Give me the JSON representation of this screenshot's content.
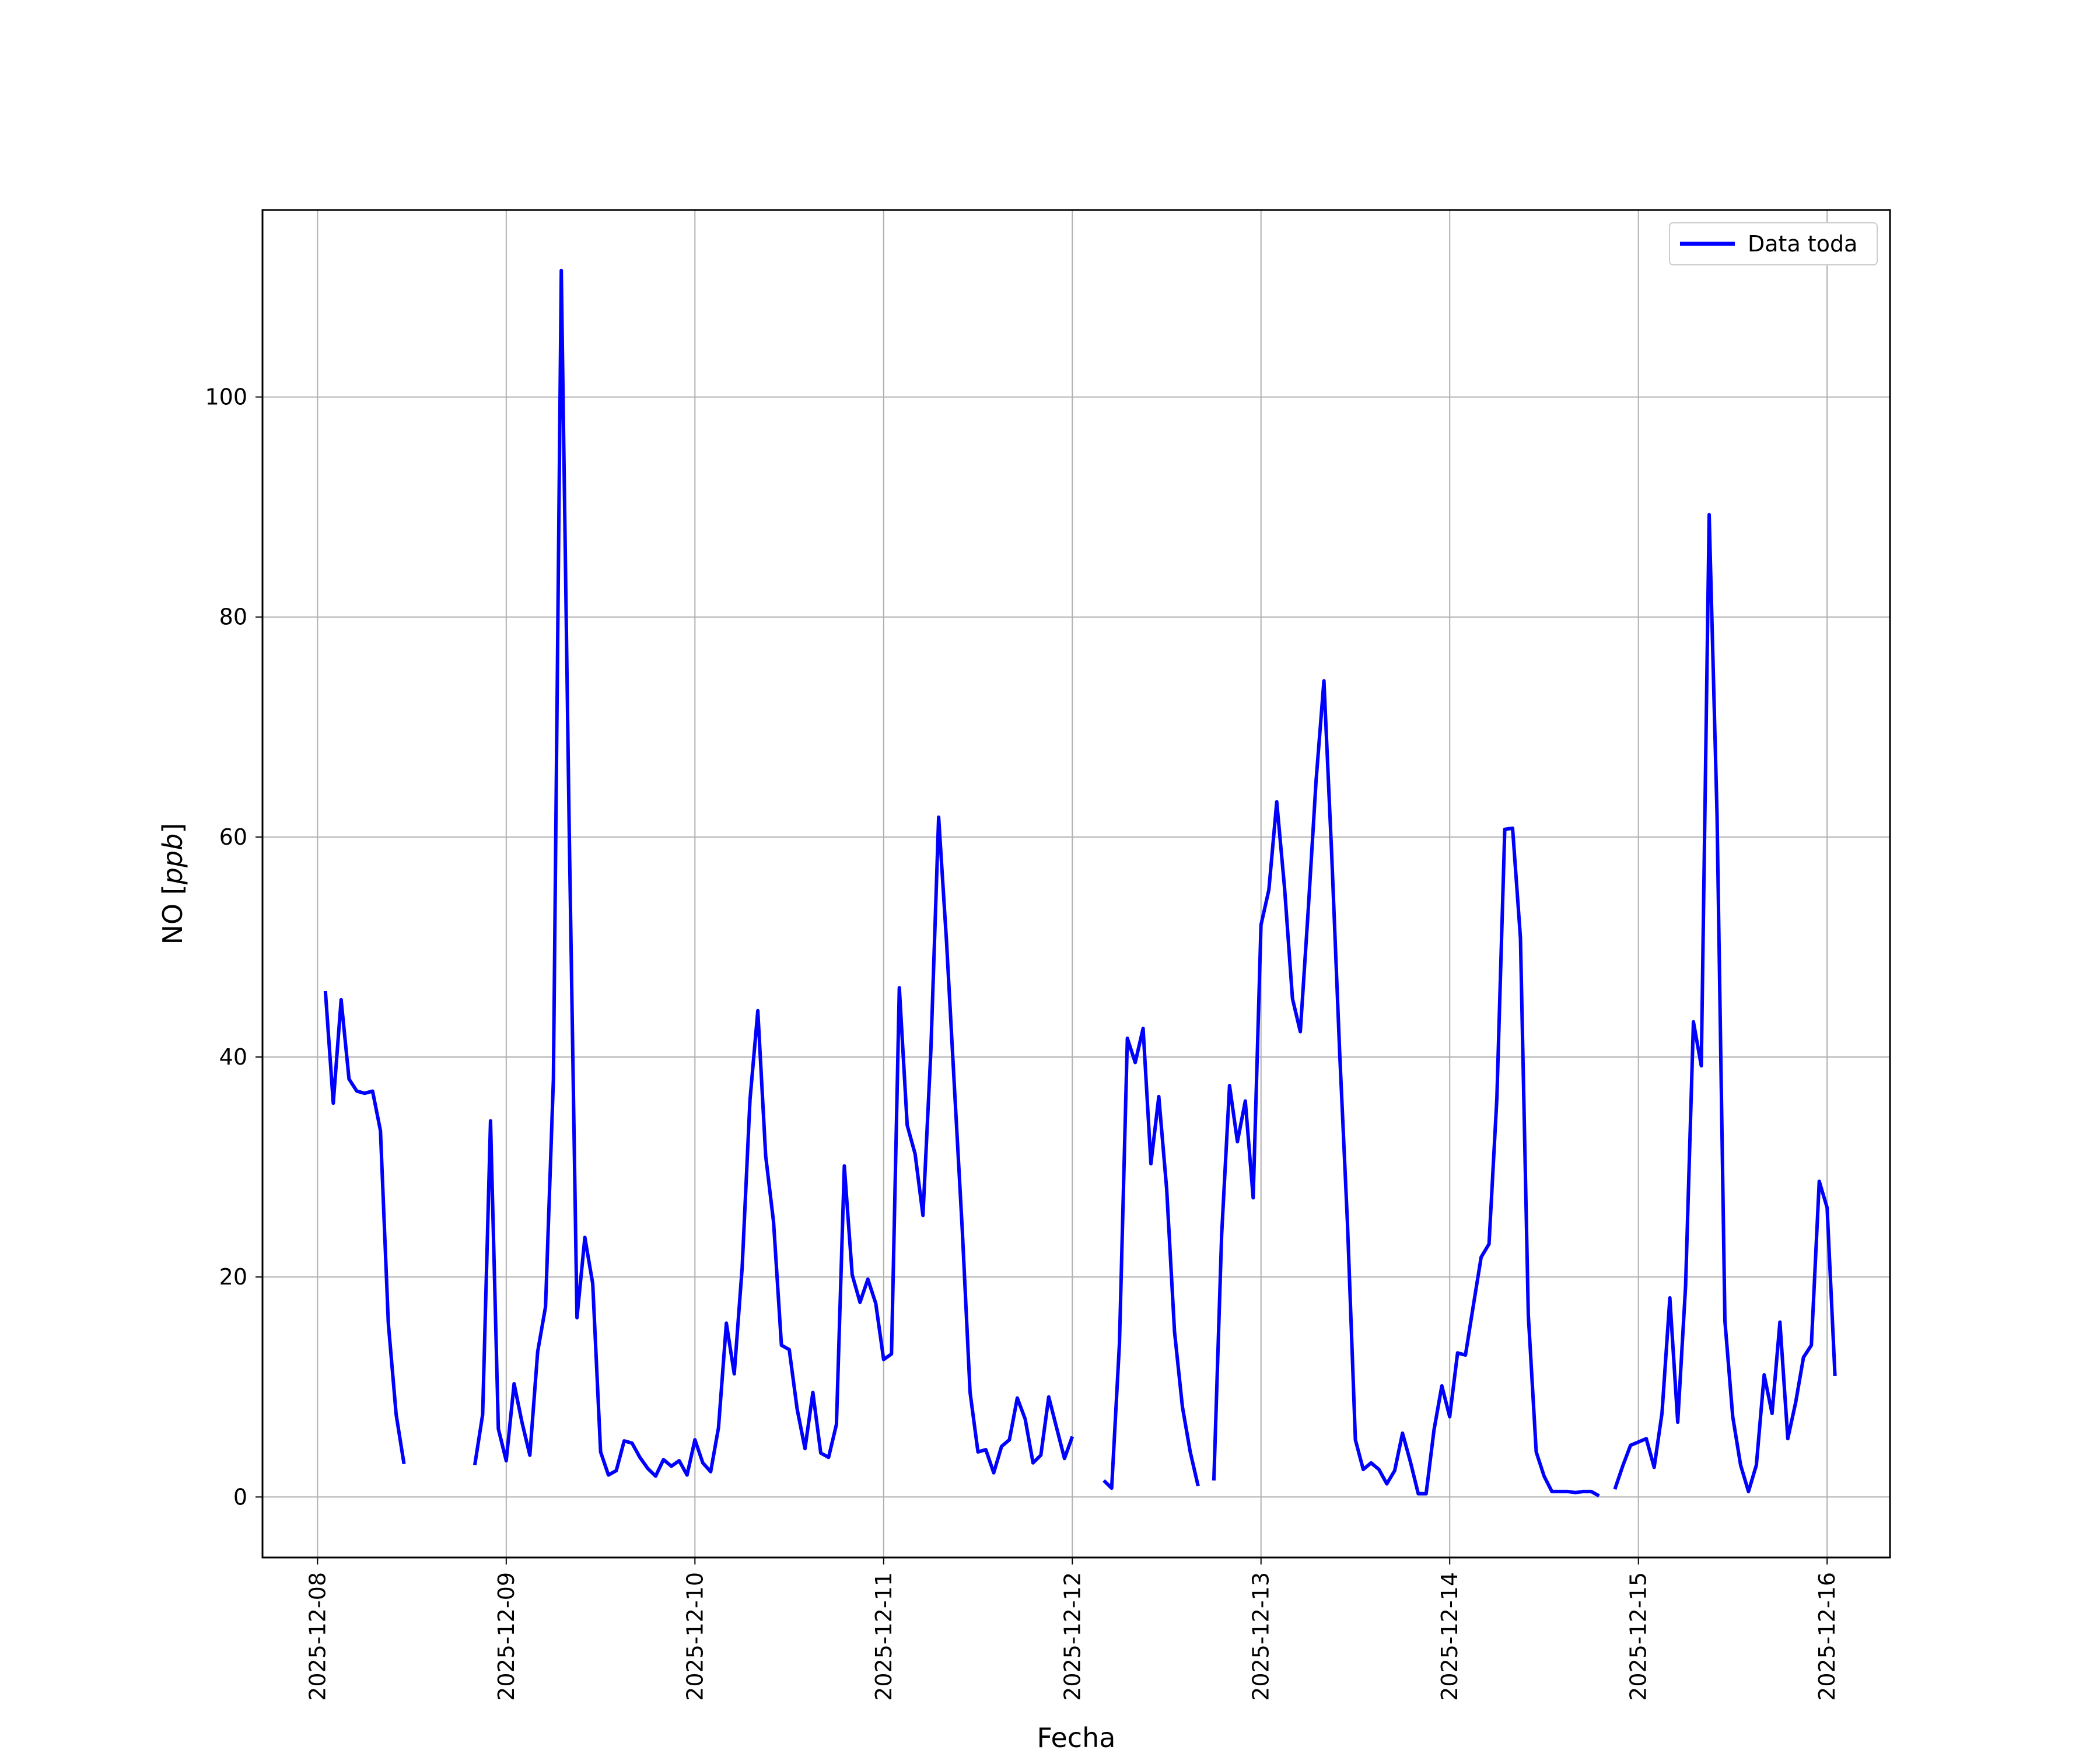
{
  "chart_data": {
    "type": "line",
    "title": "",
    "xlabel": "Fecha",
    "ylabel": "NO [ppb]",
    "ylabel_parts": {
      "base": "NO [",
      "unit": "ppb",
      "close": "]"
    },
    "xlim": [
      "2025-12-07 17:00",
      "2025-12-16 08:00"
    ],
    "ylim": [
      -5.5,
      117
    ],
    "grid": true,
    "legend_position": "top-right",
    "x_ticks": [
      "2025-12-08",
      "2025-12-09",
      "2025-12-10",
      "2025-12-11",
      "2025-12-12",
      "2025-12-13",
      "2025-12-14",
      "2025-12-15",
      "2025-12-16"
    ],
    "y_ticks": [
      0,
      20,
      40,
      60,
      80,
      100
    ],
    "series": [
      {
        "name": "Data toda",
        "color": "#0000ff",
        "points": [
          [
            "2025-12-08 01:00",
            46.0
          ],
          [
            "2025-12-08 02:00",
            35.8
          ],
          [
            "2025-12-08 03:00",
            45.2
          ],
          [
            "2025-12-08 04:00",
            38.0
          ],
          [
            "2025-12-08 05:00",
            36.9
          ],
          [
            "2025-12-08 06:00",
            36.7
          ],
          [
            "2025-12-08 07:00",
            36.9
          ],
          [
            "2025-12-08 08:00",
            33.3
          ],
          [
            "2025-12-08 09:00",
            15.8
          ],
          [
            "2025-12-08 10:00",
            7.5
          ],
          [
            "2025-12-08 11:00",
            3.0
          ],
          [
            "2025-12-08 12:00",
            null
          ],
          [
            "2025-12-08 13:00",
            null
          ],
          [
            "2025-12-08 14:00",
            null
          ],
          [
            "2025-12-08 15:00",
            null
          ],
          [
            "2025-12-08 16:00",
            null
          ],
          [
            "2025-12-08 17:00",
            null
          ],
          [
            "2025-12-08 18:00",
            null
          ],
          [
            "2025-12-08 19:00",
            null
          ],
          [
            "2025-12-08 20:00",
            2.9
          ],
          [
            "2025-12-08 21:00",
            7.5
          ],
          [
            "2025-12-08 22:00",
            34.2
          ],
          [
            "2025-12-08 23:00",
            6.2
          ],
          [
            "2025-12-09 00:00",
            3.3
          ],
          [
            "2025-12-09 01:00",
            10.3
          ],
          [
            "2025-12-09 02:00",
            6.8
          ],
          [
            "2025-12-09 03:00",
            3.8
          ],
          [
            "2025-12-09 04:00",
            13.2
          ],
          [
            "2025-12-09 05:00",
            17.3
          ],
          [
            "2025-12-09 06:00",
            38.0
          ],
          [
            "2025-12-09 07:00",
            111.5
          ],
          [
            "2025-12-09 08:00",
            61.0
          ],
          [
            "2025-12-09 09:00",
            16.3
          ],
          [
            "2025-12-09 10:00",
            23.6
          ],
          [
            "2025-12-09 11:00",
            19.4
          ],
          [
            "2025-12-09 12:00",
            4.1
          ],
          [
            "2025-12-09 13:00",
            2.0
          ],
          [
            "2025-12-09 14:00",
            2.4
          ],
          [
            "2025-12-09 15:00",
            5.1
          ],
          [
            "2025-12-09 16:00",
            4.9
          ],
          [
            "2025-12-09 17:00",
            3.6
          ],
          [
            "2025-12-09 18:00",
            2.6
          ],
          [
            "2025-12-09 19:00",
            1.9
          ],
          [
            "2025-12-09 20:00",
            3.4
          ],
          [
            "2025-12-09 21:00",
            2.8
          ],
          [
            "2025-12-09 22:00",
            3.3
          ],
          [
            "2025-12-09 23:00",
            2.0
          ],
          [
            "2025-12-10 00:00",
            5.2
          ],
          [
            "2025-12-10 01:00",
            3.1
          ],
          [
            "2025-12-10 02:00",
            2.3
          ],
          [
            "2025-12-10 03:00",
            6.3
          ],
          [
            "2025-12-10 04:00",
            15.8
          ],
          [
            "2025-12-10 05:00",
            11.2
          ],
          [
            "2025-12-10 06:00",
            20.8
          ],
          [
            "2025-12-10 07:00",
            36.1
          ],
          [
            "2025-12-10 08:00",
            44.2
          ],
          [
            "2025-12-10 09:00",
            31.0
          ],
          [
            "2025-12-10 10:00",
            25.0
          ],
          [
            "2025-12-10 11:00",
            13.8
          ],
          [
            "2025-12-10 12:00",
            13.4
          ],
          [
            "2025-12-10 13:00",
            8.0
          ],
          [
            "2025-12-10 14:00",
            4.4
          ],
          [
            "2025-12-10 15:00",
            9.5
          ],
          [
            "2025-12-10 16:00",
            4.0
          ],
          [
            "2025-12-10 17:00",
            3.6
          ],
          [
            "2025-12-10 18:00",
            6.6
          ],
          [
            "2025-12-10 19:00",
            30.1
          ],
          [
            "2025-12-10 20:00",
            20.2
          ],
          [
            "2025-12-10 21:00",
            17.7
          ],
          [
            "2025-12-10 22:00",
            19.8
          ],
          [
            "2025-12-10 23:00",
            17.6
          ],
          [
            "2025-12-11 00:00",
            12.5
          ],
          [
            "2025-12-11 01:00",
            13.0
          ],
          [
            "2025-12-11 02:00",
            46.3
          ],
          [
            "2025-12-11 03:00",
            33.8
          ],
          [
            "2025-12-11 04:00",
            31.2
          ],
          [
            "2025-12-11 05:00",
            25.6
          ],
          [
            "2025-12-11 06:00",
            40.5
          ],
          [
            "2025-12-11 07:00",
            61.8
          ],
          [
            "2025-12-11 08:00",
            50.5
          ],
          [
            "2025-12-11 09:00",
            37.3
          ],
          [
            "2025-12-11 10:00",
            24.3
          ],
          [
            "2025-12-11 11:00",
            9.5
          ],
          [
            "2025-12-11 12:00",
            4.1
          ],
          [
            "2025-12-11 13:00",
            4.3
          ],
          [
            "2025-12-11 14:00",
            2.2
          ],
          [
            "2025-12-11 15:00",
            4.6
          ],
          [
            "2025-12-11 16:00",
            5.2
          ],
          [
            "2025-12-11 17:00",
            9.0
          ],
          [
            "2025-12-11 18:00",
            7.1
          ],
          [
            "2025-12-11 19:00",
            3.1
          ],
          [
            "2025-12-11 20:00",
            3.8
          ],
          [
            "2025-12-11 21:00",
            9.1
          ],
          [
            "2025-12-11 22:00",
            6.3
          ],
          [
            "2025-12-11 23:00",
            3.5
          ],
          [
            "2025-12-12 00:00",
            5.5
          ],
          [
            "2025-12-12 01:00",
            null
          ],
          [
            "2025-12-12 02:00",
            null
          ],
          [
            "2025-12-12 03:00",
            null
          ],
          [
            "2025-12-12 04:00",
            1.5
          ],
          [
            "2025-12-12 05:00",
            0.8
          ],
          [
            "2025-12-12 06:00",
            14.0
          ],
          [
            "2025-12-12 07:00",
            41.7
          ],
          [
            "2025-12-12 08:00",
            39.5
          ],
          [
            "2025-12-12 09:00",
            42.6
          ],
          [
            "2025-12-12 10:00",
            30.3
          ],
          [
            "2025-12-12 11:00",
            36.4
          ],
          [
            "2025-12-12 12:00",
            28.0
          ],
          [
            "2025-12-12 13:00",
            15.0
          ],
          [
            "2025-12-12 14:00",
            8.2
          ],
          [
            "2025-12-12 15:00",
            4.1
          ],
          [
            "2025-12-12 16:00",
            1.0
          ],
          [
            "2025-12-12 17:00",
            null
          ],
          [
            "2025-12-12 18:00",
            1.5
          ],
          [
            "2025-12-12 19:00",
            23.9
          ],
          [
            "2025-12-12 20:00",
            37.4
          ],
          [
            "2025-12-12 21:00",
            32.3
          ],
          [
            "2025-12-12 22:00",
            36.0
          ],
          [
            "2025-12-12 23:00",
            27.2
          ],
          [
            "2025-12-13 00:00",
            52.0
          ],
          [
            "2025-12-13 01:00",
            55.2
          ],
          [
            "2025-12-13 02:00",
            63.2
          ],
          [
            "2025-12-13 03:00",
            55.3
          ],
          [
            "2025-12-13 04:00",
            45.3
          ],
          [
            "2025-12-13 05:00",
            42.3
          ],
          [
            "2025-12-13 06:00",
            53.3
          ],
          [
            "2025-12-13 07:00",
            65.1
          ],
          [
            "2025-12-13 08:00",
            74.2
          ],
          [
            "2025-12-13 09:00",
            58.3
          ],
          [
            "2025-12-13 10:00",
            40.5
          ],
          [
            "2025-12-13 11:00",
            24.8
          ],
          [
            "2025-12-13 12:00",
            5.2
          ],
          [
            "2025-12-13 13:00",
            2.5
          ],
          [
            "2025-12-13 14:00",
            3.1
          ],
          [
            "2025-12-13 15:00",
            2.5
          ],
          [
            "2025-12-13 16:00",
            1.2
          ],
          [
            "2025-12-13 17:00",
            2.4
          ],
          [
            "2025-12-13 18:00",
            5.8
          ],
          [
            "2025-12-13 19:00",
            3.2
          ],
          [
            "2025-12-13 20:00",
            0.3
          ],
          [
            "2025-12-13 21:00",
            0.3
          ],
          [
            "2025-12-13 22:00",
            6.1
          ],
          [
            "2025-12-13 23:00",
            10.1
          ],
          [
            "2025-12-14 00:00",
            7.3
          ],
          [
            "2025-12-14 01:00",
            13.1
          ],
          [
            "2025-12-14 02:00",
            12.9
          ],
          [
            "2025-12-14 03:00",
            17.4
          ],
          [
            "2025-12-14 04:00",
            21.8
          ],
          [
            "2025-12-14 05:00",
            23.0
          ],
          [
            "2025-12-14 06:00",
            36.3
          ],
          [
            "2025-12-14 07:00",
            60.7
          ],
          [
            "2025-12-14 08:00",
            60.8
          ],
          [
            "2025-12-14 09:00",
            50.8
          ],
          [
            "2025-12-14 10:00",
            16.5
          ],
          [
            "2025-12-14 11:00",
            4.1
          ],
          [
            "2025-12-14 12:00",
            1.9
          ],
          [
            "2025-12-14 13:00",
            0.5
          ],
          [
            "2025-12-14 14:00",
            0.5
          ],
          [
            "2025-12-14 15:00",
            0.5
          ],
          [
            "2025-12-14 16:00",
            0.4
          ],
          [
            "2025-12-14 17:00",
            0.5
          ],
          [
            "2025-12-14 18:00",
            0.5
          ],
          [
            "2025-12-14 19:00",
            0.1
          ],
          [
            "2025-12-14 20:00",
            null
          ],
          [
            "2025-12-14 21:00",
            0.7
          ],
          [
            "2025-12-14 22:00",
            2.8
          ],
          [
            "2025-12-14 23:00",
            4.7
          ],
          [
            "2025-12-15 00:00",
            5.0
          ],
          [
            "2025-12-15 01:00",
            5.3
          ],
          [
            "2025-12-15 02:00",
            2.7
          ],
          [
            "2025-12-15 03:00",
            7.6
          ],
          [
            "2025-12-15 04:00",
            18.1
          ],
          [
            "2025-12-15 05:00",
            6.8
          ],
          [
            "2025-12-15 06:00",
            19.2
          ],
          [
            "2025-12-15 07:00",
            43.2
          ],
          [
            "2025-12-15 08:00",
            39.2
          ],
          [
            "2025-12-15 09:00",
            89.3
          ],
          [
            "2025-12-15 10:00",
            62.0
          ],
          [
            "2025-12-15 11:00",
            16.0
          ],
          [
            "2025-12-15 12:00",
            7.3
          ],
          [
            "2025-12-15 13:00",
            2.9
          ],
          [
            "2025-12-15 14:00",
            0.5
          ],
          [
            "2025-12-15 15:00",
            2.9
          ],
          [
            "2025-12-15 16:00",
            11.1
          ],
          [
            "2025-12-15 17:00",
            7.6
          ],
          [
            "2025-12-15 18:00",
            15.9
          ],
          [
            "2025-12-15 19:00",
            5.3
          ],
          [
            "2025-12-15 20:00",
            8.6
          ],
          [
            "2025-12-15 21:00",
            12.7
          ],
          [
            "2025-12-15 22:00",
            13.8
          ],
          [
            "2025-12-15 23:00",
            28.7
          ],
          [
            "2025-12-16 00:00",
            26.3
          ],
          [
            "2025-12-16 01:00",
            11.0
          ]
        ]
      }
    ]
  }
}
